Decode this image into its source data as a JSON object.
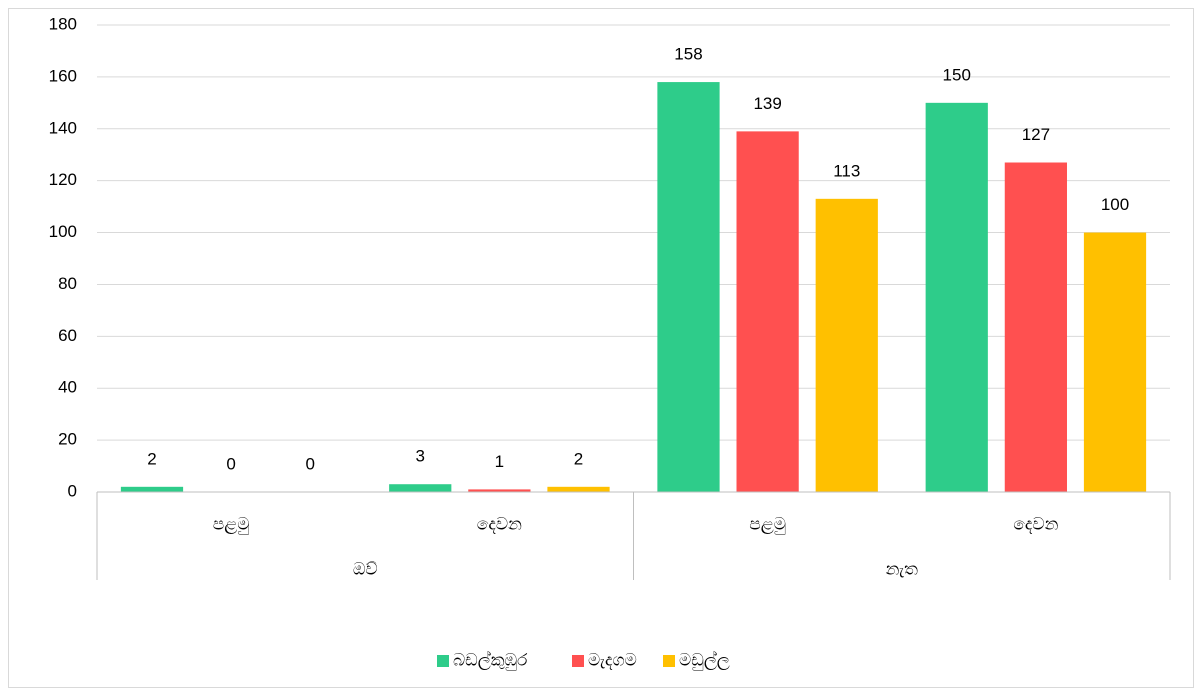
{
  "chart_data": {
    "type": "bar",
    "groups": [
      {
        "label": "ඔව්",
        "categories": [
          "පළමු",
          "දෙවන"
        ]
      },
      {
        "label": "නැත",
        "categories": [
          "පළමු",
          "දෙවන"
        ]
      }
    ],
    "series": [
      {
        "name": "බඩල්කුඹුර",
        "color": "#2ecc8a",
        "values": [
          2,
          3,
          158,
          150
        ]
      },
      {
        "name": "මැදගම",
        "color": "#ff5050",
        "values": [
          0,
          1,
          139,
          127
        ]
      },
      {
        "name": "මඩුල්ල",
        "color": "#ffc000",
        "values": [
          0,
          2,
          113,
          100
        ]
      }
    ],
    "ylim": [
      0,
      180
    ],
    "yticks": [
      0,
      20,
      40,
      60,
      80,
      100,
      120,
      140,
      160,
      180
    ],
    "grid": true,
    "legend": "bottom"
  }
}
